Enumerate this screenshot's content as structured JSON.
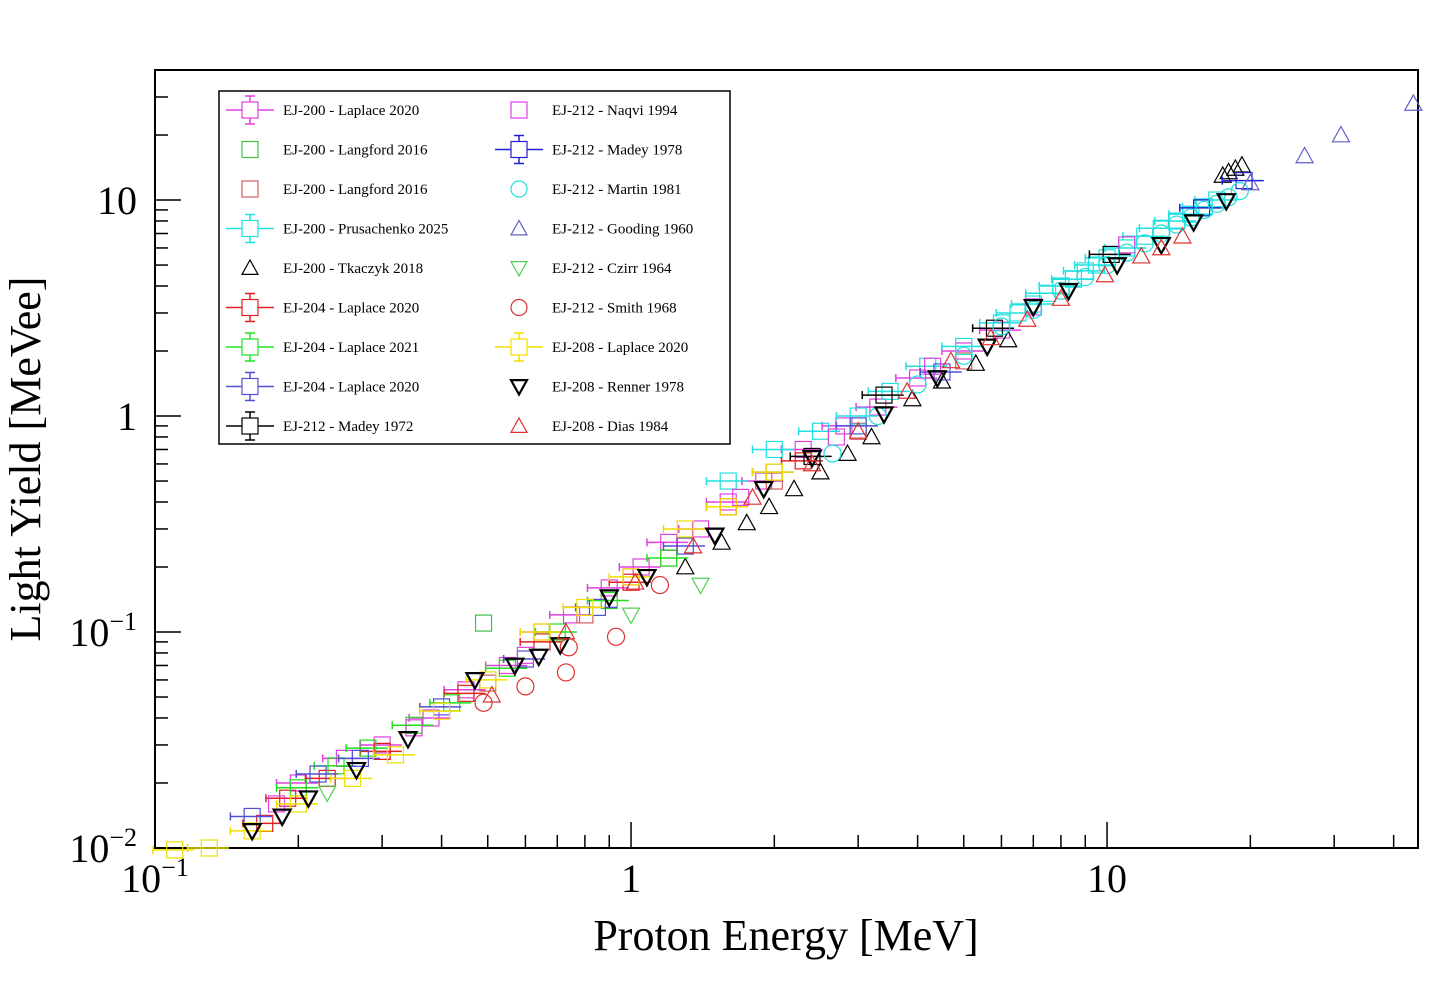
{
  "chart_data": {
    "type": "scatter",
    "title": "",
    "xlabel": "Proton Energy [MeV]",
    "ylabel": "Light Yield [MeVee]",
    "xscale": "log",
    "yscale": "log",
    "xlim": [
      0.1,
      45
    ],
    "ylim": [
      0.01,
      40
    ],
    "x_ticks": [
      {
        "value": 0.1,
        "base": "10",
        "exp": "−1"
      },
      {
        "value": 1,
        "base": "1",
        "exp": ""
      },
      {
        "value": 10,
        "base": "10",
        "exp": ""
      }
    ],
    "y_ticks": [
      {
        "value": 0.01,
        "base": "10",
        "exp": "−2"
      },
      {
        "value": 0.1,
        "base": "10",
        "exp": "−1"
      },
      {
        "value": 1,
        "base": "1",
        "exp": ""
      },
      {
        "value": 10,
        "base": "10",
        "exp": ""
      }
    ],
    "grid": false,
    "legend_position": "top-left",
    "series": [
      {
        "name": "EJ-200 - Laplace 2020",
        "color": "#e040e0",
        "marker": "square",
        "errorbars": true,
        "x": [
          0.2,
          0.25,
          0.3,
          0.38,
          0.45,
          0.55,
          0.65,
          0.75,
          0.9,
          1.05,
          1.2,
          1.4,
          1.6,
          1.9,
          2.3,
          2.8,
          3.3,
          4.0,
          5.0,
          6.0
        ],
        "y": [
          0.02,
          0.026,
          0.03,
          0.04,
          0.054,
          0.07,
          0.1,
          0.12,
          0.16,
          0.2,
          0.26,
          0.3,
          0.4,
          0.5,
          0.7,
          0.9,
          1.1,
          1.5,
          2.0,
          2.5
        ]
      },
      {
        "name": "EJ-200 - Langford 2016",
        "color": "#44c044",
        "marker": "square",
        "errorbars": false,
        "x": [
          0.49
        ],
        "y": [
          0.11
        ]
      },
      {
        "name": "EJ-200 - Langford 2016",
        "color": "#d06060",
        "marker": "square",
        "errorbars": false,
        "x": [
          0.3,
          0.5,
          0.8,
          1.2,
          2.0,
          3.0,
          5.0
        ],
        "y": [
          0.028,
          0.058,
          0.12,
          0.22,
          0.5,
          0.85,
          1.8
        ]
      },
      {
        "name": "EJ-200 - Prusachenko 2025",
        "color": "#20e0e0",
        "marker": "square",
        "errorbars": true,
        "x": [
          1.6,
          2.0,
          2.5,
          3.0,
          3.5,
          4.2,
          5.0,
          6.0,
          6.5,
          7.0,
          7.5,
          8.0,
          8.5,
          9.0,
          9.5,
          10.0,
          11.0,
          12.0,
          13.0,
          14.0,
          15.0,
          16.0,
          17.0
        ],
        "y": [
          0.5,
          0.7,
          0.85,
          1.0,
          1.3,
          1.7,
          2.1,
          2.7,
          3.0,
          3.3,
          3.7,
          4.0,
          4.3,
          4.7,
          5.0,
          5.4,
          6.0,
          6.8,
          7.4,
          8.0,
          8.6,
          9.3,
          10.0
        ]
      },
      {
        "name": "EJ-200 - Tkaczyk 2018",
        "color": "#000000",
        "marker": "triangle-up",
        "errorbars": false,
        "x": [
          1.3,
          1.55,
          1.75,
          1.95,
          2.2,
          2.5,
          2.85,
          3.2,
          3.9,
          4.5,
          5.3,
          6.2,
          17.5,
          18.0,
          18.6,
          19.2
        ],
        "y": [
          0.2,
          0.26,
          0.32,
          0.38,
          0.46,
          0.55,
          0.67,
          0.8,
          1.2,
          1.45,
          1.75,
          2.25,
          13.0,
          13.5,
          14.0,
          14.5
        ]
      },
      {
        "name": "EJ-204 - Laplace 2020",
        "color": "#e02020",
        "marker": "square",
        "errorbars": true,
        "x": [
          0.17,
          0.19,
          0.23,
          0.3,
          0.45,
          0.65,
          1.0,
          1.6,
          2.3
        ],
        "y": [
          0.013,
          0.017,
          0.021,
          0.028,
          0.052,
          0.09,
          0.17,
          0.38,
          0.62
        ]
      },
      {
        "name": "EJ-204 - Laplace 2021",
        "color": "#20e020",
        "marker": "square",
        "errorbars": true,
        "x": [
          0.2,
          0.24,
          0.28,
          0.35,
          0.42,
          0.55,
          0.7,
          0.9,
          1.2
        ],
        "y": [
          0.019,
          0.024,
          0.029,
          0.037,
          0.047,
          0.068,
          0.1,
          0.14,
          0.22
        ]
      },
      {
        "name": "EJ-204 - Laplace 2020",
        "color": "#5050d0",
        "marker": "square",
        "errorbars": true,
        "x": [
          0.16,
          0.22,
          0.27,
          0.4,
          0.6,
          0.85,
          1.3,
          2.0,
          3.0,
          4.5
        ],
        "y": [
          0.014,
          0.022,
          0.026,
          0.045,
          0.075,
          0.13,
          0.25,
          0.55,
          0.9,
          1.6
        ]
      },
      {
        "name": "EJ-212 - Madey 1972",
        "color": "#000000",
        "marker": "square",
        "errorbars": true,
        "x": [
          2.4,
          3.4,
          5.8,
          10.2
        ],
        "y": [
          0.65,
          1.25,
          2.55,
          5.6
        ]
      },
      {
        "name": "EJ-212 - Naqvi 1994",
        "color": "#e040e0",
        "marker": "square",
        "errorbars": false,
        "x": [
          0.18,
          0.35,
          0.6,
          1.0,
          1.7,
          2.7,
          4.3,
          7.0,
          11.0
        ],
        "y": [
          0.016,
          0.036,
          0.078,
          0.18,
          0.42,
          0.8,
          1.7,
          3.2,
          6.2
        ]
      },
      {
        "name": "EJ-212 - Madey 1978",
        "color": "#2020d0",
        "marker": "square",
        "errorbars": true,
        "x": [
          15.8,
          19.4
        ],
        "y": [
          9.2,
          12.3
        ]
      },
      {
        "name": "EJ-212 - Martin 1981",
        "color": "#20e0e0",
        "marker": "circle",
        "errorbars": false,
        "x": [
          2.65,
          3.3,
          4.0,
          5.0,
          6.0,
          7.0,
          8.0,
          9.0,
          10.0,
          11.0,
          12.0,
          13.0,
          14.0,
          15.0,
          16.0,
          17.0,
          18.0,
          19.0
        ],
        "y": [
          0.67,
          1.0,
          1.4,
          1.9,
          2.6,
          3.1,
          3.8,
          4.4,
          5.0,
          5.7,
          6.3,
          7.0,
          7.7,
          8.3,
          9.0,
          9.6,
          10.3,
          11.0
        ]
      },
      {
        "name": "EJ-212 - Gooding 1960",
        "color": "#6060c8",
        "marker": "triangle-up",
        "errorbars": false,
        "x": [
          20.0,
          26.0,
          31.0,
          44.0
        ],
        "y": [
          12.0,
          16.0,
          20.0,
          28.0
        ]
      },
      {
        "name": "EJ-212 - Czirr 1964",
        "color": "#50d050",
        "marker": "triangle-down",
        "errorbars": false,
        "x": [
          0.23,
          1.0,
          1.4
        ],
        "y": [
          0.018,
          0.12,
          0.165
        ]
      },
      {
        "name": "EJ-212 - Smith 1968",
        "color": "#e03030",
        "marker": "circle",
        "errorbars": false,
        "x": [
          0.49,
          0.6,
          0.73,
          0.74,
          0.93,
          1.15
        ],
        "y": [
          0.047,
          0.056,
          0.065,
          0.085,
          0.095,
          0.165
        ]
      },
      {
        "name": "EJ-208 - Laplace 2020",
        "color": "#f0e000",
        "marker": "square",
        "errorbars": true,
        "x": [
          0.11,
          0.13,
          0.16,
          0.2,
          0.26,
          0.32,
          0.4,
          0.5,
          0.65,
          0.8,
          1.0,
          1.3,
          1.6,
          2.0
        ],
        "y": [
          0.0098,
          0.01,
          0.012,
          0.016,
          0.021,
          0.027,
          0.043,
          0.06,
          0.1,
          0.13,
          0.18,
          0.3,
          0.38,
          0.55
        ]
      },
      {
        "name": "EJ-208 - Renner 1978",
        "color": "#000000",
        "marker": "triangle-down",
        "errorbars": false,
        "x": [
          0.16,
          0.185,
          0.21,
          0.265,
          0.34,
          0.47,
          0.57,
          0.64,
          0.71,
          0.9,
          1.08,
          1.5,
          1.9,
          2.4,
          3.4,
          4.4,
          5.6,
          7.0,
          8.3,
          10.5,
          13.0,
          15.2,
          17.8
        ],
        "y": [
          0.012,
          0.014,
          0.017,
          0.023,
          0.032,
          0.06,
          0.07,
          0.077,
          0.087,
          0.145,
          0.18,
          0.28,
          0.46,
          0.64,
          1.02,
          1.5,
          2.1,
          3.2,
          3.8,
          5.0,
          6.2,
          7.9,
          9.9
        ]
      },
      {
        "name": "EJ-208 - Dias 1984",
        "color": "#e03030",
        "marker": "triangle-up",
        "errorbars": false,
        "x": [
          0.51,
          0.73,
          1.02,
          1.35,
          1.8,
          2.4,
          3.0,
          3.8,
          4.7,
          5.7,
          6.8,
          8.0,
          9.9,
          11.8,
          13.0,
          14.4
        ],
        "y": [
          0.051,
          0.1,
          0.17,
          0.25,
          0.42,
          0.6,
          0.85,
          1.3,
          1.8,
          2.3,
          2.8,
          3.5,
          4.5,
          5.5,
          6.0,
          6.8
        ]
      }
    ]
  }
}
